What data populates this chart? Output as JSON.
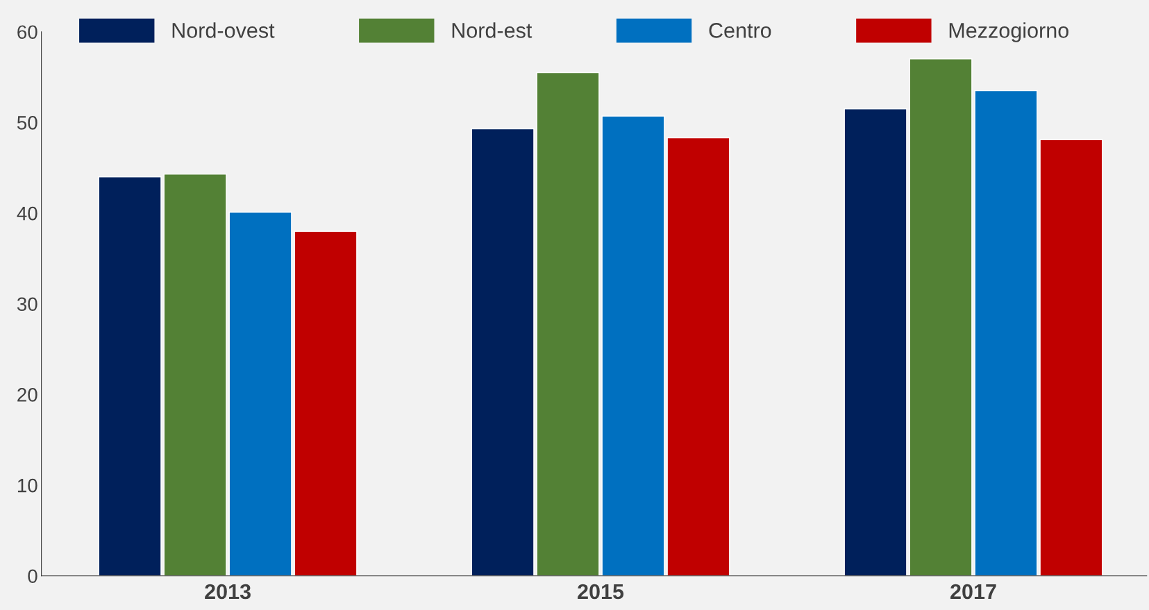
{
  "chart_data": {
    "type": "bar",
    "categories": [
      "2013",
      "2015",
      "2017"
    ],
    "series": [
      {
        "name": "Nord-ovest",
        "color": "#00205b",
        "values": [
          44.0,
          49.3,
          51.5
        ]
      },
      {
        "name": "Nord-est",
        "color": "#538135",
        "values": [
          44.3,
          55.5,
          57.0
        ]
      },
      {
        "name": "Centro",
        "color": "#0070c0",
        "values": [
          40.1,
          50.7,
          53.5
        ]
      },
      {
        "name": "Mezzogiorno",
        "color": "#c00000",
        "values": [
          38.0,
          48.3,
          48.1
        ]
      }
    ],
    "ylim": [
      0,
      60
    ],
    "yticks": [
      0,
      10,
      20,
      30,
      40,
      50,
      60
    ],
    "grid": false,
    "legend": "top"
  }
}
